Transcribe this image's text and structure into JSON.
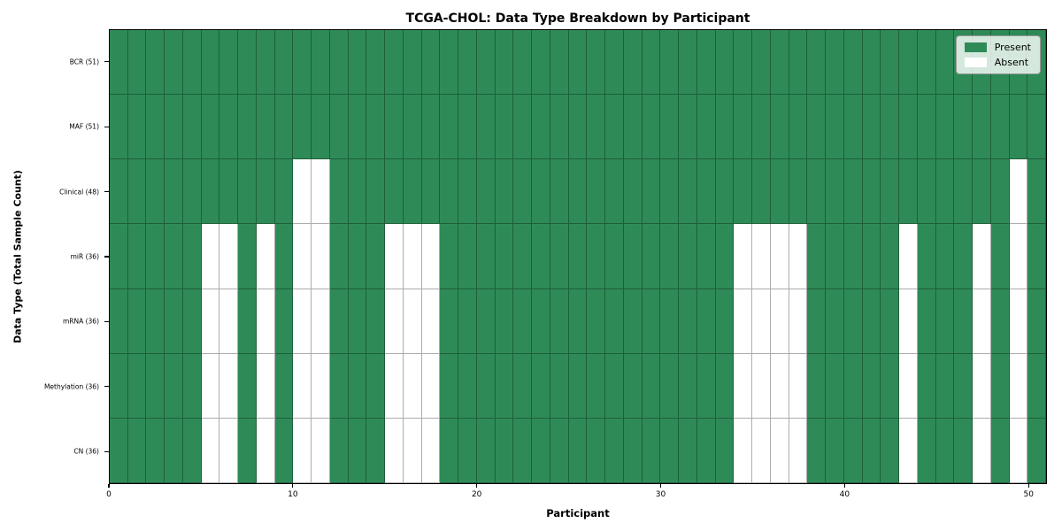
{
  "chart_data": {
    "type": "heatmap",
    "title": "TCGA-CHOL: Data Type Breakdown by Participant",
    "xlabel": "Participant",
    "ylabel": "Data Type (Total Sample Count)",
    "x_ticks": [
      0,
      10,
      20,
      30,
      40,
      50
    ],
    "x_range": [
      0,
      51
    ],
    "n_participants": 51,
    "grid": true,
    "legend_position": "upper right",
    "legend": [
      {
        "label": "Present",
        "color": "#2e8b57"
      },
      {
        "label": "Absent",
        "color": "#ffffff"
      }
    ],
    "colors": {
      "present": "#2e8b57",
      "absent": "#ffffff",
      "grid_line": "rgba(0,0,0,0.32)",
      "plot_border": "#000000",
      "legend_bg": "rgba(255,255,255,0.8)",
      "legend_border": "#9a9a9a"
    },
    "rows": [
      {
        "label": "BCR (51)",
        "present_count": 51,
        "absent_participants": []
      },
      {
        "label": "MAF (51)",
        "present_count": 51,
        "absent_participants": []
      },
      {
        "label": "Clinical (48)",
        "present_count": 48,
        "absent_participants": [
          10,
          11,
          49
        ]
      },
      {
        "label": "miR (36)",
        "present_count": 36,
        "absent_participants": [
          5,
          6,
          8,
          10,
          11,
          15,
          16,
          17,
          34,
          35,
          36,
          37,
          43,
          47,
          49
        ]
      },
      {
        "label": "mRNA (36)",
        "present_count": 36,
        "absent_participants": [
          5,
          6,
          8,
          10,
          11,
          15,
          16,
          17,
          34,
          35,
          36,
          37,
          43,
          47,
          49
        ]
      },
      {
        "label": "Methylation (36)",
        "present_count": 36,
        "absent_participants": [
          5,
          6,
          8,
          10,
          11,
          15,
          16,
          17,
          34,
          35,
          36,
          37,
          43,
          47,
          49
        ]
      },
      {
        "label": "CN (36)",
        "present_count": 36,
        "absent_participants": [
          5,
          6,
          8,
          10,
          11,
          15,
          16,
          17,
          34,
          35,
          36,
          37,
          43,
          47,
          49
        ]
      }
    ]
  }
}
